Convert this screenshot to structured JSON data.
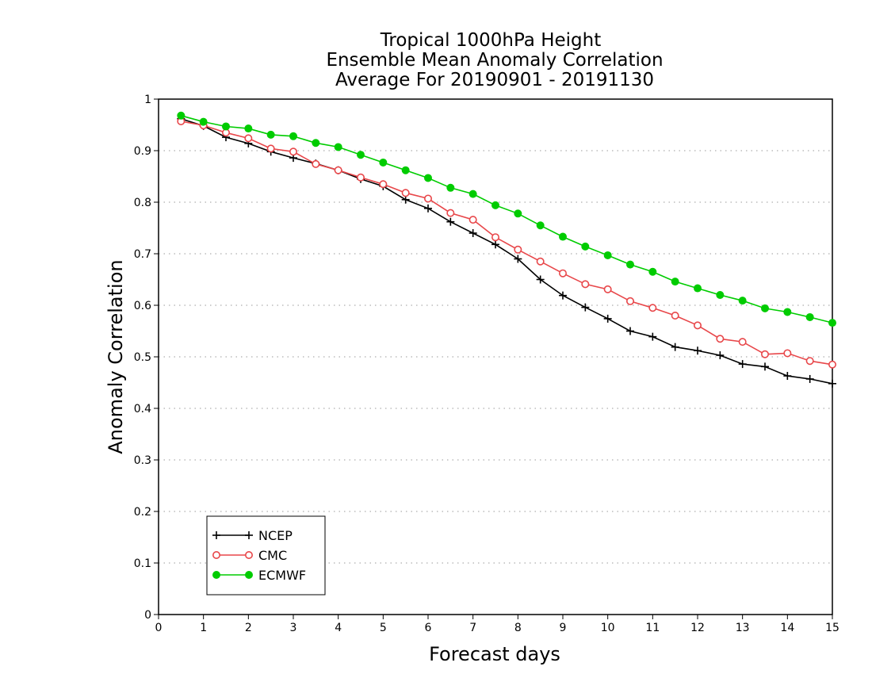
{
  "chart_data": {
    "type": "line",
    "title_lines": [
      "Tropical 1000hPa Height",
      "Ensemble Mean Anomaly Correlation",
      "Average For 20190901 - 20191130"
    ],
    "xlabel": "Forecast days",
    "ylabel": "Anomaly Correlation",
    "xlim": [
      0,
      15
    ],
    "ylim": [
      0,
      1
    ],
    "xticks": [
      "0",
      "1",
      "2",
      "3",
      "4",
      "5",
      "6",
      "7",
      "8",
      "9",
      "10",
      "11",
      "12",
      "13",
      "14",
      "15"
    ],
    "yticks": [
      "0",
      "0.1",
      "0.2",
      "0.3",
      "0.4",
      "0.5",
      "0.6",
      "0.7",
      "0.8",
      "0.9",
      "1"
    ],
    "grid": "horizontal dotted",
    "legend_position": "bottom-left",
    "x": [
      0.5,
      1,
      1.5,
      2,
      2.5,
      3,
      3.5,
      4,
      4.5,
      5,
      5.5,
      6,
      6.5,
      7,
      7.5,
      8,
      8.5,
      9,
      9.5,
      10,
      10.5,
      11,
      11.5,
      12,
      12.5,
      13,
      13.5,
      14,
      14.5,
      15
    ],
    "series": [
      {
        "name": "NCEP",
        "color": "#000000",
        "marker": "plus",
        "values": [
          0.962,
          0.948,
          0.926,
          0.914,
          0.898,
          0.886,
          0.875,
          0.862,
          0.845,
          0.831,
          0.805,
          0.788,
          0.762,
          0.74,
          0.718,
          0.69,
          0.65,
          0.619,
          0.596,
          0.574,
          0.55,
          0.539,
          0.519,
          0.512,
          0.503,
          0.486,
          0.481,
          0.463,
          0.457,
          0.448
        ]
      },
      {
        "name": "CMC",
        "color": "#e8474a",
        "marker": "open-circle",
        "values": [
          0.957,
          0.949,
          0.935,
          0.924,
          0.904,
          0.898,
          0.874,
          0.862,
          0.848,
          0.835,
          0.818,
          0.807,
          0.779,
          0.766,
          0.732,
          0.708,
          0.685,
          0.662,
          0.641,
          0.631,
          0.608,
          0.595,
          0.58,
          0.561,
          0.535,
          0.529,
          0.505,
          0.507,
          0.492,
          0.485
        ]
      },
      {
        "name": "ECMWF",
        "color": "#00cc00",
        "marker": "filled-circle",
        "values": [
          0.968,
          0.956,
          0.947,
          0.943,
          0.931,
          0.928,
          0.915,
          0.907,
          0.892,
          0.877,
          0.862,
          0.847,
          0.828,
          0.816,
          0.794,
          0.778,
          0.755,
          0.733,
          0.714,
          0.697,
          0.679,
          0.665,
          0.646,
          0.633,
          0.62,
          0.609,
          0.594,
          0.587,
          0.577,
          0.566
        ]
      }
    ]
  }
}
